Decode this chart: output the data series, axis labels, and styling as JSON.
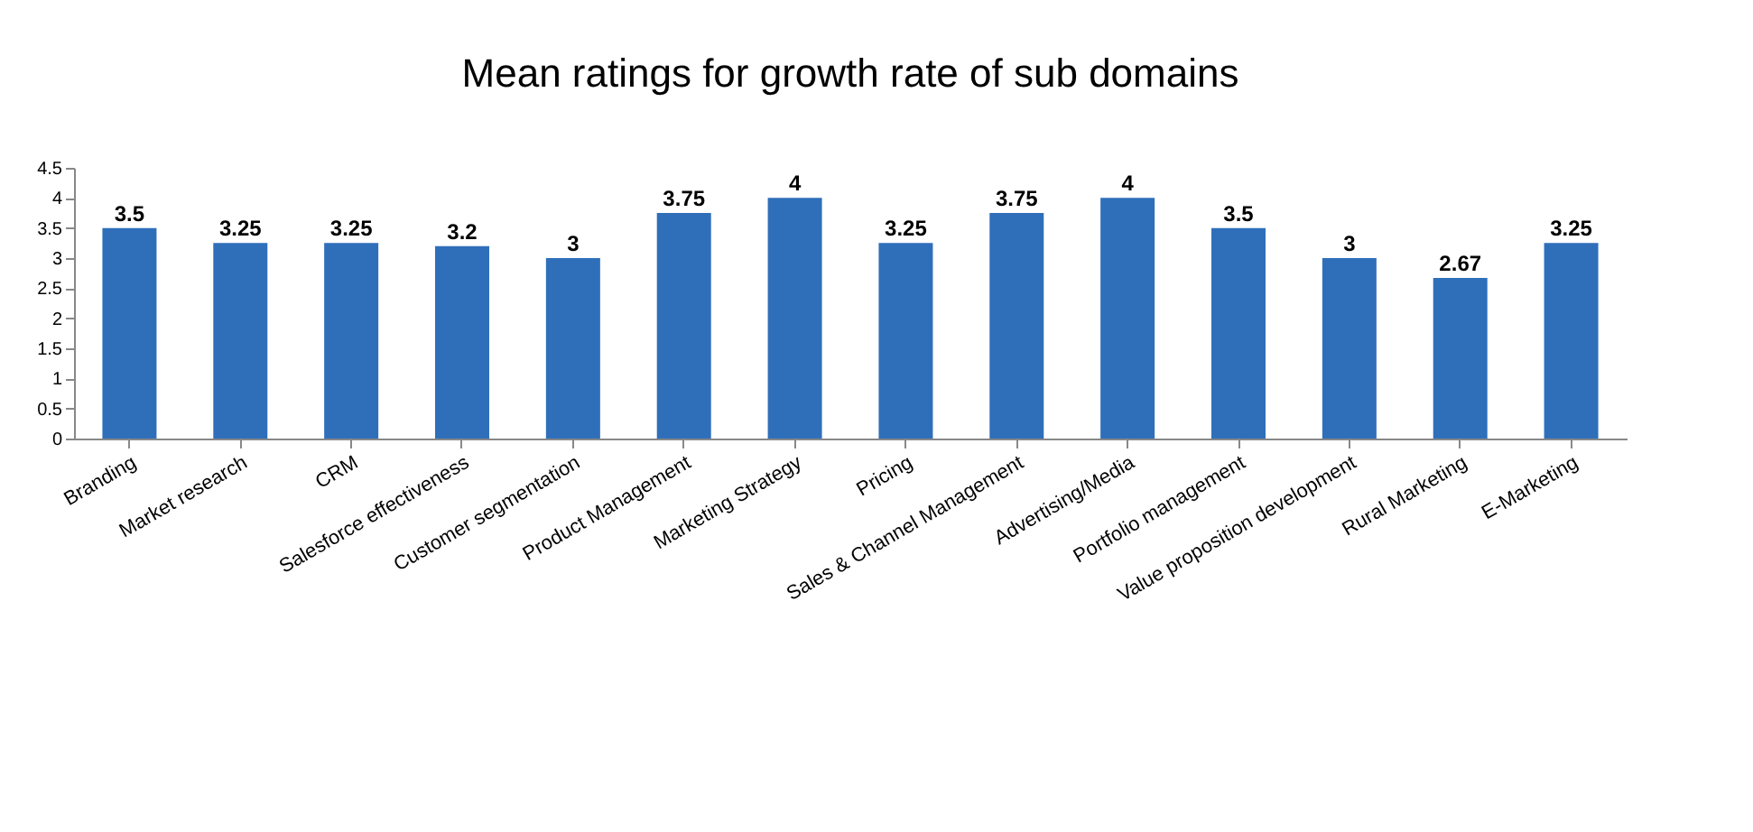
{
  "chart_data": {
    "type": "bar",
    "title": "Mean ratings for growth rate of sub domains",
    "categories": [
      "Branding",
      "Market research",
      "CRM",
      "Salesforce effectiveness",
      "Customer segmentation",
      "Product Management",
      "Marketing Strategy",
      "Pricing",
      "Sales & Channel Management",
      "Advertising/Media",
      "Portfolio management",
      "Value proposition development",
      "Rural Marketing",
      "E-Marketing"
    ],
    "values": [
      3.5,
      3.25,
      3.25,
      3.2,
      3,
      3.75,
      4,
      3.25,
      3.75,
      4,
      3.5,
      3,
      2.67,
      3.25
    ],
    "color": "#2f6fba",
    "ylim": [
      0,
      4.5
    ],
    "yticks": [
      0,
      0.5,
      1,
      1.5,
      2,
      2.5,
      3,
      3.5,
      4,
      4.5
    ],
    "grid": false,
    "data_labels": true
  }
}
